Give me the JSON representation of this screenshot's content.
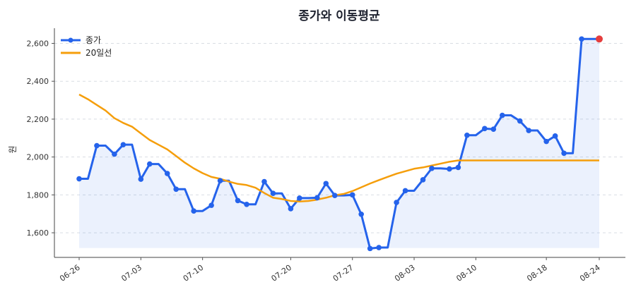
{
  "chart_data": {
    "type": "line",
    "title": "종가와 이동평균",
    "xlabel": "",
    "ylabel": "원",
    "ylim": [
      1470,
      2680
    ],
    "yticks": [
      1600,
      1800,
      2000,
      2200,
      2400,
      2600
    ],
    "ytick_labels": [
      "1,600",
      "1,800",
      "2,000",
      "2,200",
      "2,400",
      "2,600"
    ],
    "grid": true,
    "legend_position": "top-left",
    "x": [
      "06-26",
      "06-27",
      "06-28",
      "06-29",
      "06-30",
      "07-01",
      "07-02",
      "07-03",
      "07-04",
      "07-05",
      "07-06",
      "07-07",
      "07-08",
      "07-09",
      "07-10",
      "07-11",
      "07-12",
      "07-13",
      "07-14",
      "07-15",
      "07-16",
      "07-17",
      "07-18",
      "07-19",
      "07-20",
      "07-21",
      "07-22",
      "07-23",
      "07-24",
      "07-25",
      "07-26",
      "07-27",
      "07-28",
      "07-29",
      "07-30",
      "07-31",
      "08-01",
      "08-02",
      "08-03",
      "08-04",
      "08-05",
      "08-06",
      "08-07",
      "08-08",
      "08-09",
      "08-10",
      "08-11",
      "08-12",
      "08-13",
      "08-14",
      "08-15",
      "08-16",
      "08-17",
      "08-18",
      "08-19",
      "08-20",
      "08-21",
      "08-22",
      "08-23",
      "08-24"
    ],
    "xticks": [
      "06-26",
      "07-03",
      "07-10",
      "07-20",
      "07-27",
      "08-03",
      "08-10",
      "08-18",
      "08-24"
    ],
    "series": [
      {
        "name": "종가",
        "color": "#2563eb",
        "markers": true,
        "fill": true,
        "values": [
          1885,
          1885,
          2060,
          2060,
          2015,
          2065,
          2065,
          1883,
          1963,
          1963,
          1913,
          1830,
          1830,
          1715,
          1715,
          1745,
          1875,
          1875,
          1770,
          1750,
          1750,
          1870,
          1808,
          1808,
          1727,
          1783,
          1783,
          1785,
          1860,
          1797,
          1797,
          1800,
          1698,
          1517,
          1522,
          1522,
          1760,
          1822,
          1822,
          1880,
          1940,
          1940,
          1937,
          1945,
          2115,
          2115,
          2150,
          2147,
          2220,
          2220,
          2190,
          2140,
          2140,
          2082,
          2111,
          2020,
          2020,
          2623,
          2623,
          2623
        ]
      },
      {
        "name": "20일선",
        "color": "#f59e0b",
        "markers": false,
        "values": [
          2330,
          2305,
          2275,
          2245,
          2205,
          2180,
          2160,
          2125,
          2090,
          2065,
          2040,
          2005,
          1970,
          1940,
          1915,
          1895,
          1885,
          1870,
          1858,
          1852,
          1838,
          1810,
          1785,
          1778,
          1768,
          1765,
          1768,
          1775,
          1785,
          1798,
          1805,
          1820,
          1840,
          1860,
          1878,
          1895,
          1912,
          1925,
          1938,
          1945,
          1955,
          1965,
          1975,
          1982,
          1982,
          1982,
          1982,
          1982,
          1982,
          1982,
          1982,
          1982,
          1982,
          1982,
          1982,
          1982,
          1982,
          1982,
          1982,
          1982
        ]
      }
    ],
    "highlight": {
      "label": "last",
      "color": "#e53e3e"
    }
  }
}
